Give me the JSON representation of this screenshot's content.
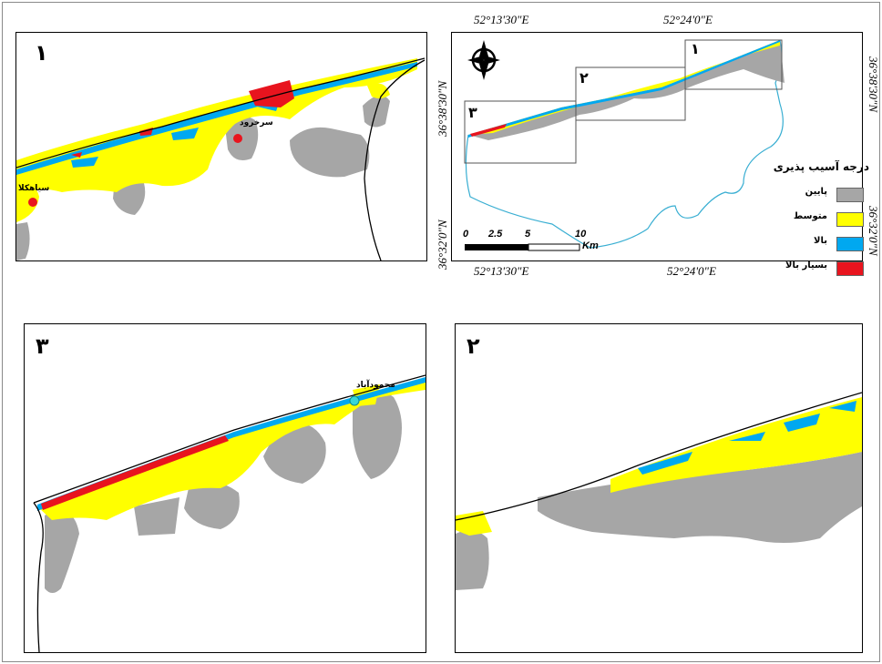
{
  "panel_numbers": {
    "p1": "١",
    "p2": "٢",
    "p3": "٣"
  },
  "overview": {
    "box_labels": {
      "b1": "١",
      "b2": "٢",
      "b3": "٣"
    },
    "top_coords": [
      "52°13'30\"E",
      "52°24'0\"E"
    ],
    "bottom_coords": [
      "52°13'30\"E",
      "52°24'0\"E"
    ],
    "left_coords": [
      "36°38'30\"N",
      "36°32'0\"N"
    ],
    "right_coords": [
      "36°38'30\"N",
      "36°32'0\"N"
    ]
  },
  "places": {
    "p1_a": "سرخرود",
    "p1_b": "سیاهکلا",
    "p3_a": "محمودآباد"
  },
  "legend": {
    "title": "درجه آسیب پذیری",
    "items": [
      {
        "label": "پایین",
        "color": "#a6a6a6"
      },
      {
        "label": "متوسط",
        "color": "#ffff00"
      },
      {
        "label": "بالا",
        "color": "#00a8f0"
      },
      {
        "label": "بسیار بالا",
        "color": "#e8141e"
      }
    ]
  },
  "scale": {
    "ticks": [
      "0",
      "2.5",
      "5",
      "10"
    ],
    "unit": "Km"
  }
}
